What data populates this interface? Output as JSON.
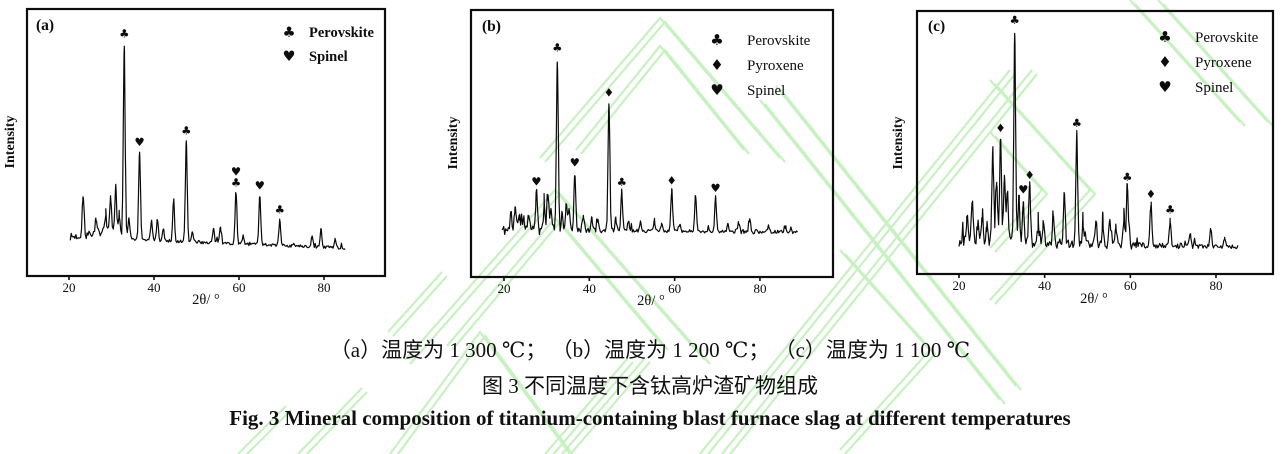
{
  "figure": {
    "caption_sub": "（a）温度为 1 300 ℃； （b）温度为 1 200 ℃； （c）温度为 1 100 ℃",
    "caption_cn": "图 3 不同温度下含钛高炉渣矿物组成",
    "caption_en": "Fig. 3 Mineral composition of titanium-containing blast furnace slag at different temperatures"
  },
  "colors": {
    "ink": "#0d0d0d",
    "curve": "#0a0a0a",
    "watermark": "#c8f1c2",
    "background": "#ffffff"
  },
  "marker_glyphs": {
    "club": "♣",
    "diamond": "♦",
    "heart": "♥"
  },
  "chart_data": [
    {
      "type": "line",
      "panel_label": "(a)",
      "xlabel": "2θ/ °",
      "ylabel": "Intensity",
      "xticks": [
        20,
        40,
        60,
        80
      ],
      "x_range": [
        20.3,
        85
      ],
      "ylim": [
        0,
        1.12
      ],
      "legend_bold": true,
      "legend": [
        {
          "marker": "club",
          "label": "Perovskite"
        },
        {
          "marker": "heart",
          "label": "Spinel"
        }
      ],
      "hump": {
        "center": 28.0,
        "amplitude": 0.032,
        "width": 4.2
      },
      "noise": {
        "seed": 7,
        "base": 0.011,
        "regions": [
          {
            "from": 20,
            "to": 33,
            "amp": 0.016
          }
        ]
      },
      "peaks": [
        {
          "x": 23.3,
          "h": 0.2
        },
        {
          "x": 26.3,
          "h": 0.06
        },
        {
          "x": 28.6,
          "h": 0.07
        },
        {
          "x": 29.8,
          "h": 0.18
        },
        {
          "x": 31.0,
          "h": 0.25
        },
        {
          "x": 31.8,
          "h": 0.12
        },
        {
          "x": 33.0,
          "h": 1.0,
          "markers": [
            "club"
          ]
        },
        {
          "x": 34.1,
          "h": 0.1
        },
        {
          "x": 36.6,
          "h": 0.45,
          "markers": [
            "heart"
          ]
        },
        {
          "x": 39.4,
          "h": 0.1
        },
        {
          "x": 40.8,
          "h": 0.11
        },
        {
          "x": 42.2,
          "h": 0.06
        },
        {
          "x": 44.6,
          "h": 0.21
        },
        {
          "x": 47.6,
          "h": 0.52,
          "markers": [
            "club"
          ]
        },
        {
          "x": 49.0,
          "h": 0.05
        },
        {
          "x": 54.0,
          "h": 0.07
        },
        {
          "x": 55.6,
          "h": 0.08
        },
        {
          "x": 59.3,
          "h": 0.26,
          "markers": [
            "club",
            "heart"
          ]
        },
        {
          "x": 61.0,
          "h": 0.04
        },
        {
          "x": 64.9,
          "h": 0.25,
          "markers": [
            "heart"
          ]
        },
        {
          "x": 69.6,
          "h": 0.13,
          "markers": [
            "club"
          ]
        },
        {
          "x": 77.2,
          "h": 0.05
        },
        {
          "x": 79.3,
          "h": 0.09
        },
        {
          "x": 82.6,
          "h": 0.04
        }
      ]
    },
    {
      "type": "line",
      "panel_label": "(b)",
      "xlabel": "2θ/ °",
      "ylabel": "Intensity",
      "xticks": [
        20,
        40,
        60,
        80
      ],
      "x_range": [
        19.5,
        89
      ],
      "ylim": [
        0,
        1.12
      ],
      "legend_bold": false,
      "legend": [
        {
          "marker": "club",
          "label": "Perovskite"
        },
        {
          "marker": "diamond",
          "label": "Pyroxene"
        },
        {
          "marker": "heart",
          "label": "Spinel"
        }
      ],
      "hump": null,
      "noise": {
        "seed": 11,
        "base": 0.013,
        "regions": [
          {
            "from": 19.5,
            "to": 33.5,
            "amp": 0.03
          },
          {
            "from": 33.5,
            "to": 50,
            "amp": 0.008
          },
          {
            "from": 74,
            "to": 80,
            "amp": 0.006
          }
        ]
      },
      "peaks": [
        {
          "x": 21.6,
          "h": 0.1
        },
        {
          "x": 22.6,
          "h": 0.12
        },
        {
          "x": 23.6,
          "h": 0.09
        },
        {
          "x": 24.6,
          "h": 0.08
        },
        {
          "x": 25.8,
          "h": 0.1
        },
        {
          "x": 27.6,
          "h": 0.22,
          "markers": [
            "heart"
          ]
        },
        {
          "x": 29.4,
          "h": 0.13
        },
        {
          "x": 30.2,
          "h": 0.2
        },
        {
          "x": 31.0,
          "h": 0.13
        },
        {
          "x": 32.5,
          "h": 1.0,
          "markers": [
            "club"
          ]
        },
        {
          "x": 33.6,
          "h": 0.1
        },
        {
          "x": 34.6,
          "h": 0.15
        },
        {
          "x": 35.3,
          "h": 0.12
        },
        {
          "x": 36.6,
          "h": 0.33,
          "markers": [
            "heart"
          ]
        },
        {
          "x": 38.6,
          "h": 0.08
        },
        {
          "x": 40.6,
          "h": 0.07
        },
        {
          "x": 42.0,
          "h": 0.06
        },
        {
          "x": 44.6,
          "h": 0.74,
          "markers": [
            "diamond"
          ]
        },
        {
          "x": 46.2,
          "h": 0.07
        },
        {
          "x": 47.6,
          "h": 0.22,
          "markers": [
            "club"
          ]
        },
        {
          "x": 49.2,
          "h": 0.05
        },
        {
          "x": 52.0,
          "h": 0.05
        },
        {
          "x": 55.2,
          "h": 0.05
        },
        {
          "x": 57.0,
          "h": 0.04
        },
        {
          "x": 59.3,
          "h": 0.23,
          "markers": [
            "diamond"
          ]
        },
        {
          "x": 61.2,
          "h": 0.04
        },
        {
          "x": 64.9,
          "h": 0.21
        },
        {
          "x": 69.6,
          "h": 0.19,
          "markers": [
            "heart"
          ]
        },
        {
          "x": 72.5,
          "h": 0.04
        },
        {
          "x": 75.0,
          "h": 0.05
        },
        {
          "x": 77.6,
          "h": 0.07
        },
        {
          "x": 82.0,
          "h": 0.04
        },
        {
          "x": 86.0,
          "h": 0.03
        }
      ]
    },
    {
      "type": "line",
      "panel_label": "(c)",
      "xlabel": "2θ/ °",
      "ylabel": "Intensity",
      "xticks": [
        20,
        40,
        60,
        80
      ],
      "x_range": [
        20.0,
        85.3
      ],
      "ylim": [
        0,
        1.12
      ],
      "legend_bold": false,
      "legend": [
        {
          "marker": "club",
          "label": "Perovskite"
        },
        {
          "marker": "diamond",
          "label": "Pyroxene"
        },
        {
          "marker": "heart",
          "label": "Spinel"
        }
      ],
      "hump": null,
      "noise": {
        "seed": 23,
        "base": 0.013,
        "regions": [
          {
            "from": 20,
            "to": 47,
            "amp": 0.024
          },
          {
            "from": 47,
            "to": 61,
            "amp": 0.014
          },
          {
            "from": 61,
            "to": 75,
            "amp": 0.006
          }
        ]
      },
      "peaks": [
        {
          "x": 21.9,
          "h": 0.12
        },
        {
          "x": 23.1,
          "h": 0.18
        },
        {
          "x": 24.4,
          "h": 0.09
        },
        {
          "x": 25.4,
          "h": 0.12
        },
        {
          "x": 26.5,
          "h": 0.08
        },
        {
          "x": 27.9,
          "h": 0.43
        },
        {
          "x": 28.8,
          "h": 0.28
        },
        {
          "x": 29.7,
          "h": 0.49,
          "markers": [
            "diamond"
          ]
        },
        {
          "x": 30.6,
          "h": 0.3
        },
        {
          "x": 31.3,
          "h": 0.24
        },
        {
          "x": 33.0,
          "h": 1.0,
          "markers": [
            "club"
          ]
        },
        {
          "x": 34.0,
          "h": 0.22
        },
        {
          "x": 35.0,
          "h": 0.2,
          "markers": [
            "heart"
          ]
        },
        {
          "x": 36.5,
          "h": 0.27,
          "markers": [
            "diamond"
          ]
        },
        {
          "x": 38.5,
          "h": 0.08
        },
        {
          "x": 39.7,
          "h": 0.1
        },
        {
          "x": 42.0,
          "h": 0.15
        },
        {
          "x": 44.6,
          "h": 0.23
        },
        {
          "x": 47.5,
          "h": 0.52,
          "markers": [
            "club"
          ]
        },
        {
          "x": 49.0,
          "h": 0.08
        },
        {
          "x": 52.0,
          "h": 0.1
        },
        {
          "x": 53.6,
          "h": 0.09
        },
        {
          "x": 55.2,
          "h": 0.1
        },
        {
          "x": 56.6,
          "h": 0.08
        },
        {
          "x": 58.5,
          "h": 0.12
        },
        {
          "x": 59.3,
          "h": 0.27,
          "markers": [
            "club"
          ]
        },
        {
          "x": 64.8,
          "h": 0.19,
          "markers": [
            "diamond"
          ]
        },
        {
          "x": 69.3,
          "h": 0.12,
          "markers": [
            "club"
          ]
        },
        {
          "x": 74.0,
          "h": 0.05
        },
        {
          "x": 78.8,
          "h": 0.08
        },
        {
          "x": 82.0,
          "h": 0.04
        }
      ]
    }
  ]
}
